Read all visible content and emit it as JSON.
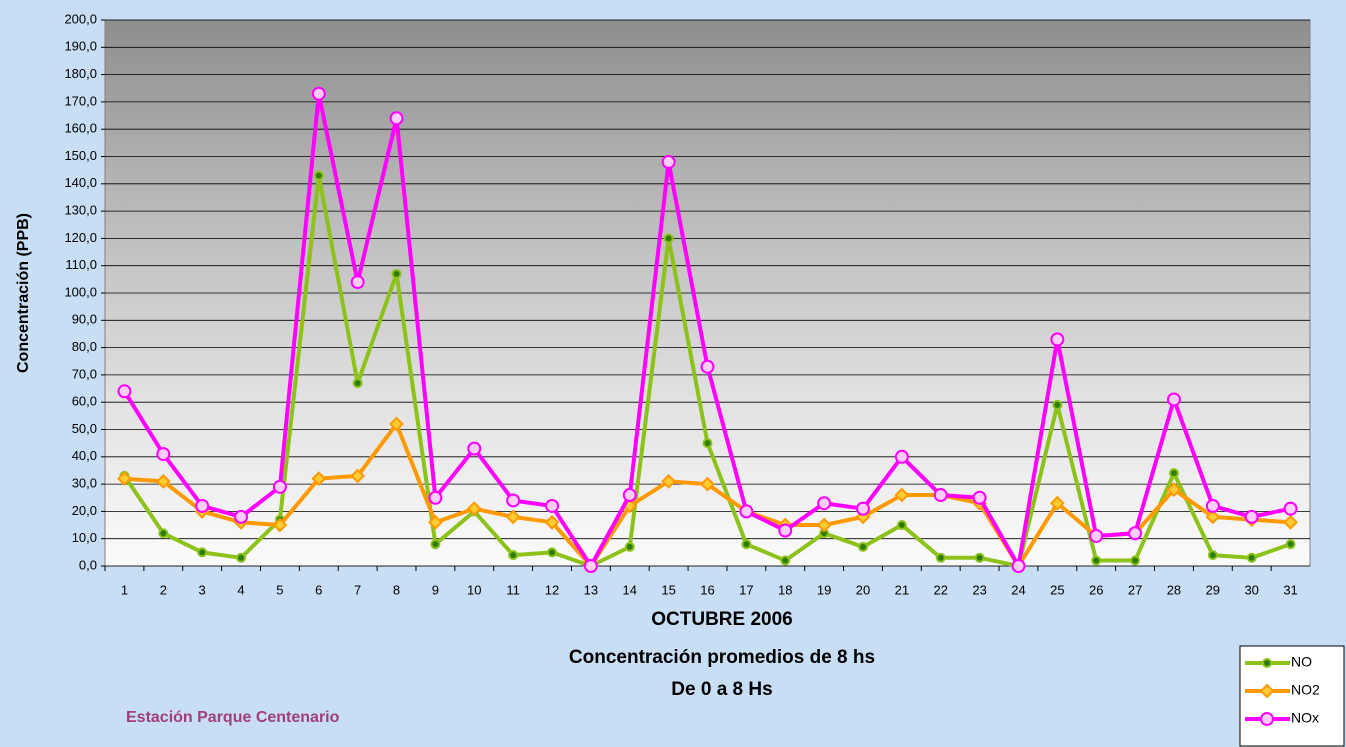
{
  "chart_data": {
    "type": "line",
    "title_lines": [
      "OCTUBRE 2006",
      "Concentración promedios de 8 hs",
      "De 0 a 8 Hs"
    ],
    "ylabel": "Concentración  (PPB)",
    "station": "Estación Parque Centenario",
    "categories": [
      "1",
      "2",
      "3",
      "4",
      "5",
      "6",
      "7",
      "8",
      "9",
      "10",
      "11",
      "12",
      "13",
      "14",
      "15",
      "16",
      "17",
      "18",
      "19",
      "20",
      "21",
      "22",
      "23",
      "24",
      "25",
      "26",
      "27",
      "28",
      "29",
      "30",
      "31"
    ],
    "series": [
      {
        "name": "NO",
        "color": "#8cc21a",
        "marker_color": "#2e7d0a",
        "marker": "circle",
        "values": [
          33,
          12,
          5,
          3,
          17,
          143,
          67,
          107,
          8,
          20,
          4,
          5,
          0,
          7,
          120,
          45,
          8,
          2,
          12,
          7,
          15,
          3,
          3,
          0,
          59,
          2,
          2,
          34,
          4,
          3,
          8
        ]
      },
      {
        "name": "NO2",
        "color": "#ff9900",
        "marker_color": "#ffcc33",
        "marker": "diamond",
        "values": [
          32,
          31,
          20,
          16,
          15,
          32,
          33,
          52,
          16,
          21,
          18,
          16,
          0,
          22,
          31,
          30,
          20,
          15,
          15,
          18,
          26,
          26,
          23,
          0,
          23,
          11,
          12,
          28,
          18,
          17,
          16
        ]
      },
      {
        "name": "NOx",
        "color": "#ff00ff",
        "marker_color": "#ffccff",
        "marker": "circle",
        "values": [
          64,
          41,
          22,
          18,
          29,
          173,
          104,
          164,
          25,
          43,
          24,
          22,
          0,
          26,
          148,
          73,
          20,
          13,
          23,
          21,
          40,
          26,
          25,
          0,
          83,
          11,
          12,
          61,
          22,
          18,
          21
        ]
      }
    ],
    "ylim": [
      0,
      200
    ],
    "yticks": [
      {
        "value": 0,
        "label": "0,0"
      },
      {
        "value": 10,
        "label": "10,0"
      },
      {
        "value": 20,
        "label": "20,0"
      },
      {
        "value": 30,
        "label": "30,0"
      },
      {
        "value": 40,
        "label": "40,0"
      },
      {
        "value": 50,
        "label": "50,0"
      },
      {
        "value": 60,
        "label": "60,0"
      },
      {
        "value": 70,
        "label": "70,0"
      },
      {
        "value": 80,
        "label": "80,0"
      },
      {
        "value": 90,
        "label": "90,0"
      },
      {
        "value": 100,
        "label": "100,0"
      },
      {
        "value": 110,
        "label": "110,0"
      },
      {
        "value": 120,
        "label": "120,0"
      },
      {
        "value": 130,
        "label": "130,0"
      },
      {
        "value": 140,
        "label": "140,0"
      },
      {
        "value": 150,
        "label": "150,0"
      },
      {
        "value": 160,
        "label": "160,0"
      },
      {
        "value": 170,
        "label": "170,0"
      },
      {
        "value": 180,
        "label": "180,0"
      },
      {
        "value": 190,
        "label": "190,0"
      },
      {
        "value": 200,
        "label": "200,0"
      }
    ],
    "grid": true
  }
}
